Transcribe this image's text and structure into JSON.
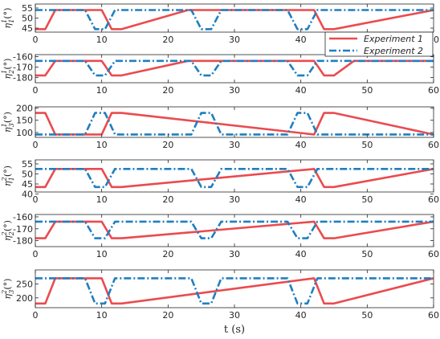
{
  "chart_data": {
    "type": "line",
    "xlabel": "t (s)",
    "xlim": [
      0,
      60
    ],
    "xticks": [
      0,
      10,
      20,
      30,
      40,
      50,
      60
    ],
    "grid": false,
    "legend": {
      "placement": "top-right",
      "entries": [
        "Experiment 1",
        "Experiment 2"
      ]
    },
    "colors": {
      "exp1": "#ea4b4f",
      "exp2": "#1f7fbf",
      "axes": "#262626"
    },
    "series_styles": {
      "Experiment 1": "solid",
      "Experiment 2": "dash-dot"
    },
    "panels": [
      {
        "ylabel": "η_1^1 (°)",
        "ylabel_main": "η",
        "ylabel_sup": "1",
        "ylabel_sub": "1",
        "ylim": [
          43,
          57
        ],
        "yticks": [
          45,
          50,
          55
        ],
        "series": [
          {
            "name": "Experiment 1",
            "x": [
              0,
              1.5,
              3,
              10,
              11.5,
              13,
              23,
              24.5,
              26,
              29,
              30.5,
              32,
              42,
              43.5,
              45,
              60
            ],
            "y": [
              44.5,
              44.5,
              54,
              54,
              44.5,
              44.5,
              54,
              54,
              54,
              54,
              54,
              54,
              54,
              44.5,
              44.5,
              54
            ]
          },
          {
            "name": "Experiment 2",
            "x": [
              0,
              7.5,
              9,
              10.5,
              12,
              23.5,
              25,
              26.5,
              28,
              38,
              39.5,
              41,
              42.5,
              60
            ],
            "y": [
              54,
              54,
              44.5,
              44.5,
              54,
              54,
              44.5,
              44.5,
              54,
              54,
              44.5,
              44.5,
              54,
              54
            ]
          }
        ]
      },
      {
        "ylabel": "η_2^1 (°)",
        "ylabel_main": "η",
        "ylabel_sup": "1",
        "ylabel_sub": "2",
        "ylim": [
          -185,
          -158
        ],
        "yticks": [
          -180,
          -170,
          -160
        ],
        "series": [
          {
            "name": "Experiment 1",
            "x": [
              0,
              1.5,
              3,
              10,
              11.5,
              13,
              23,
              30,
              42,
              43.5,
              45,
              48,
              50,
              52,
              56,
              58,
              60
            ],
            "y": [
              -178,
              -178,
              -164,
              -164,
              -178,
              -178,
              -164,
              -164,
              -164,
              -178,
              -178,
              -164,
              -164,
              -164,
              -164,
              -164,
              -164
            ]
          },
          {
            "name": "Experiment 2",
            "x": [
              0,
              7.5,
              9,
              10.5,
              12,
              23.5,
              25,
              26.5,
              28,
              38,
              39.5,
              41,
              42.5,
              60
            ],
            "y": [
              -164,
              -164,
              -178,
              -178,
              -164,
              -164,
              -178,
              -178,
              -164,
              -164,
              -178,
              -178,
              -164,
              -164
            ]
          }
        ]
      },
      {
        "ylabel": "η_3^1 (°)",
        "ylabel_main": "η",
        "ylabel_sup": "1",
        "ylabel_sub": "3",
        "ylim": [
          80,
          205
        ],
        "yticks": [
          100,
          150,
          200
        ],
        "series": [
          {
            "name": "Experiment 1",
            "x": [
              0,
              1.5,
              3,
              10,
              11.5,
              13,
              42,
              43.5,
              45,
              60
            ],
            "y": [
              180,
              180,
              92,
              92,
              180,
              180,
              92,
              180,
              180,
              92
            ]
          },
          {
            "name": "Experiment 2",
            "x": [
              0,
              7.5,
              9,
              10.5,
              12,
              23.5,
              25,
              26.5,
              28,
              38,
              39.5,
              41,
              42.5,
              60
            ],
            "y": [
              92,
              92,
              180,
              180,
              92,
              92,
              180,
              180,
              92,
              92,
              180,
              180,
              92,
              92
            ]
          }
        ]
      },
      {
        "ylabel": "η_1^2 (°)",
        "ylabel_main": "η",
        "ylabel_sup": "2",
        "ylabel_sub": "1",
        "ylim": [
          41,
          57
        ],
        "yticks": [
          40,
          45,
          50,
          55
        ],
        "series": [
          {
            "name": "Experiment 1",
            "x": [
              0,
              1.5,
              3,
              10,
              11.5,
              13,
              42,
              43.5,
              45,
              60
            ],
            "y": [
              43.5,
              43.5,
              52.5,
              52.5,
              43.5,
              43.5,
              52.5,
              43.5,
              43.5,
              52.5
            ]
          },
          {
            "name": "Experiment 2",
            "x": [
              0,
              7.5,
              9,
              10.5,
              12,
              23.5,
              25,
              26.5,
              28,
              38,
              39.5,
              41,
              42.5,
              60
            ],
            "y": [
              52.5,
              52.5,
              43.5,
              43.5,
              52.5,
              52.5,
              43.5,
              43.5,
              52.5,
              52.5,
              43.5,
              43.5,
              52.5,
              52.5
            ]
          }
        ]
      },
      {
        "ylabel": "η_2^2 (°)",
        "ylabel_main": "η",
        "ylabel_sup": "2",
        "ylabel_sub": "2",
        "ylim": [
          -185,
          -158
        ],
        "yticks": [
          -180,
          -170,
          -160
        ],
        "series": [
          {
            "name": "Experiment 1",
            "x": [
              0,
              1.5,
              3,
              10,
              11.5,
              13,
              42,
              43.5,
              45,
              60
            ],
            "y": [
              -178,
              -178,
              -164,
              -164,
              -178,
              -178,
              -164,
              -178,
              -178,
              -164
            ]
          },
          {
            "name": "Experiment 2",
            "x": [
              0,
              7.5,
              9,
              10.5,
              12,
              23.5,
              25,
              26.5,
              28,
              38,
              39.5,
              41,
              42.5,
              60
            ],
            "y": [
              -164,
              -164,
              -178,
              -178,
              -164,
              -164,
              -178,
              -178,
              -164,
              -164,
              -178,
              -178,
              -164,
              -164
            ]
          }
        ]
      },
      {
        "ylabel": "η_3^2 (°)",
        "ylabel_main": "η",
        "ylabel_sup": "2",
        "ylabel_sub": "3",
        "ylim": [
          165,
          300
        ],
        "yticks": [
          200,
          250
        ],
        "series": [
          {
            "name": "Experiment 1",
            "x": [
              0,
              1.5,
              3,
              10,
              11.5,
              13,
              42,
              43.5,
              45,
              60
            ],
            "y": [
              180,
              180,
              270,
              270,
              180,
              180,
              270,
              180,
              180,
              270
            ]
          },
          {
            "name": "Experiment 2",
            "x": [
              0,
              7.5,
              9,
              10.5,
              12,
              23.5,
              25,
              26.5,
              28,
              38,
              39.5,
              41,
              42.5,
              60
            ],
            "y": [
              270,
              270,
              180,
              180,
              270,
              270,
              180,
              180,
              270,
              270,
              180,
              180,
              270,
              270
            ]
          }
        ]
      }
    ]
  }
}
